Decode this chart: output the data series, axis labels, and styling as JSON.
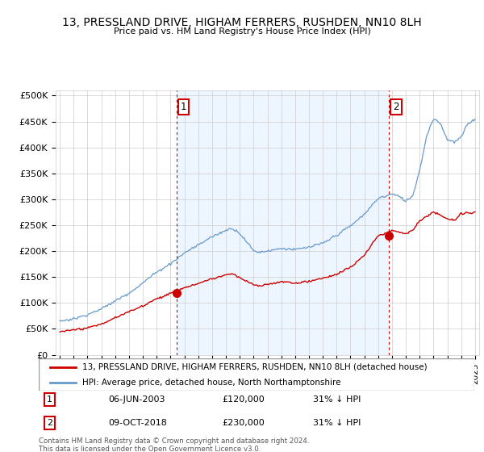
{
  "title": "13, PRESSLAND DRIVE, HIGHAM FERRERS, RUSHDEN, NN10 8LH",
  "subtitle": "Price paid vs. HM Land Registry's House Price Index (HPI)",
  "red_line_label": "13, PRESSLAND DRIVE, HIGHAM FERRERS, RUSHDEN, NN10 8LH (detached house)",
  "blue_line_label": "HPI: Average price, detached house, North Northamptonshire",
  "sale1_date": "06-JUN-2003",
  "sale1_price": "£120,000",
  "sale1_hpi": "31% ↓ HPI",
  "sale2_date": "09-OCT-2018",
  "sale2_price": "£230,000",
  "sale2_hpi": "31% ↓ HPI",
  "footer": "Contains HM Land Registry data © Crown copyright and database right 2024.\nThis data is licensed under the Open Government Licence v3.0.",
  "ytick_labels": [
    "£0",
    "£50K",
    "£100K",
    "£150K",
    "£200K",
    "£250K",
    "£300K",
    "£350K",
    "£400K",
    "£450K",
    "£500K"
  ],
  "yticks": [
    0,
    50000,
    100000,
    150000,
    200000,
    250000,
    300000,
    350000,
    400000,
    450000,
    500000
  ],
  "sale1_year": 2003.43,
  "sale2_year": 2018.77,
  "red_color": "#cc0000",
  "blue_color": "#6699cc",
  "shade_color": "#ddeeff",
  "vline_color": "#cc0000",
  "grid_color": "#cccccc"
}
